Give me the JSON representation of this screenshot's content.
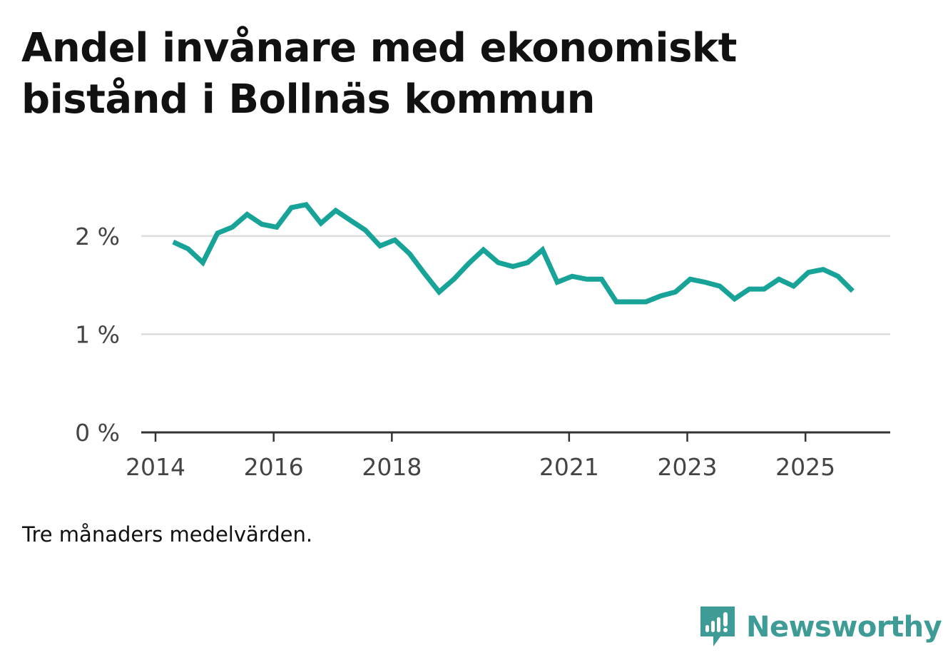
{
  "title": "Andel invånare med ekonomiskt bistånd i Bollnäs kommun",
  "footnote": "Tre månaders medelvärden.",
  "brand": {
    "name": "Newsworthy",
    "icon": "newsworthy-logo-icon",
    "color": "#3f9b96"
  },
  "colors": {
    "line": "#17a398",
    "grid": "#dcdcdc",
    "axis": "#333333",
    "label": "#444444"
  },
  "chart_data": {
    "type": "line",
    "title": "Andel invånare med ekonomiskt bistånd i Bollnäs kommun",
    "xlabel": "",
    "ylabel": "",
    "ylim": [
      0,
      2.5
    ],
    "xlim": [
      2014.0,
      2026.0
    ],
    "grid": true,
    "y_ticks": [
      {
        "value": 0,
        "label": "0 %"
      },
      {
        "value": 1,
        "label": "1 %"
      },
      {
        "value": 2,
        "label": "2 %"
      }
    ],
    "x_ticks": [
      {
        "value": 2014,
        "label": "2014"
      },
      {
        "value": 2016,
        "label": "2016"
      },
      {
        "value": 2018,
        "label": "2018"
      },
      {
        "value": 2021,
        "label": "2021"
      },
      {
        "value": 2023,
        "label": "2023"
      },
      {
        "value": 2025,
        "label": "2025"
      }
    ],
    "series": [
      {
        "name": "Andel invånare med ekonomiskt bistånd",
        "x": [
          2014.3,
          2014.55,
          2014.8,
          2015.05,
          2015.3,
          2015.55,
          2015.8,
          2016.05,
          2016.3,
          2016.55,
          2016.8,
          2017.05,
          2017.3,
          2017.55,
          2017.8,
          2018.05,
          2018.3,
          2018.55,
          2018.8,
          2019.05,
          2019.3,
          2019.55,
          2019.8,
          2020.05,
          2020.3,
          2020.55,
          2020.8,
          2021.05,
          2021.3,
          2021.55,
          2021.8,
          2022.05,
          2022.3,
          2022.55,
          2022.8,
          2023.05,
          2023.3,
          2023.55,
          2023.8,
          2024.05,
          2024.3,
          2024.55,
          2024.8,
          2025.05,
          2025.3,
          2025.55,
          2025.8
        ],
        "values": [
          1.94,
          1.87,
          1.73,
          2.03,
          2.09,
          2.22,
          2.12,
          2.09,
          2.29,
          2.32,
          2.13,
          2.26,
          2.16,
          2.06,
          1.9,
          1.96,
          1.82,
          1.62,
          1.43,
          1.56,
          1.72,
          1.86,
          1.73,
          1.69,
          1.73,
          1.86,
          1.53,
          1.59,
          1.56,
          1.56,
          1.33,
          1.33,
          1.33,
          1.39,
          1.43,
          1.56,
          1.53,
          1.49,
          1.36,
          1.46,
          1.46,
          1.56,
          1.49,
          1.63,
          1.66,
          1.59,
          1.44
        ]
      }
    ]
  }
}
